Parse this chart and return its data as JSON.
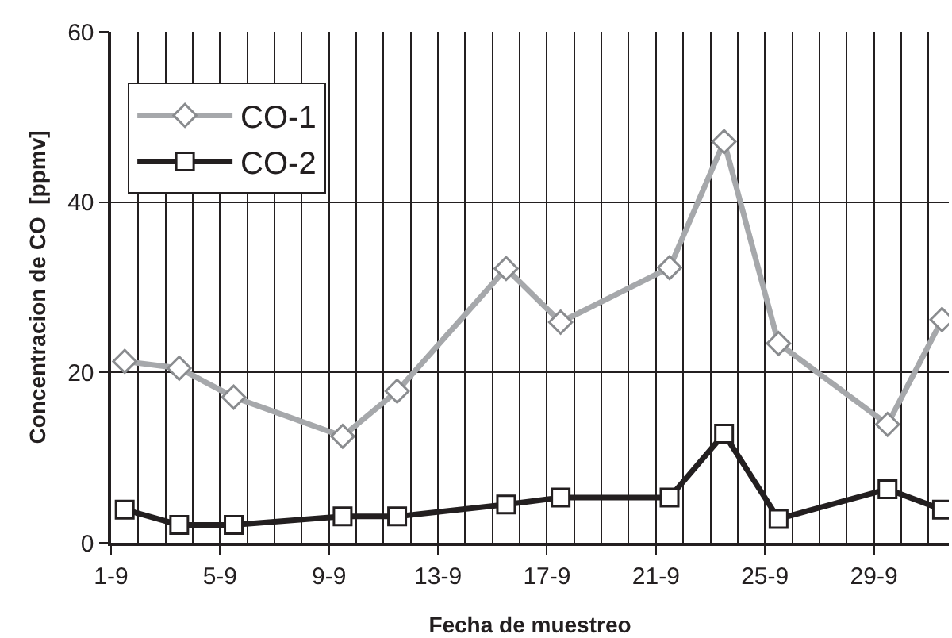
{
  "chart_data": {
    "type": "line",
    "xlabel": "Fecha de muestreo",
    "ylabel": "Concentracion de CO  [ppmv]",
    "x": [
      "--09-01T12:00",
      "--09-03T12:00",
      "--09-05T12:00",
      "--09-09T12:00",
      "--09-11T12:00",
      "--09-15T12:00",
      "--09-17T12:00",
      "--09-21T12:00",
      "--09-23T12:00",
      "--09-25T12:00",
      "--09-29T12:00",
      "--10-01T12:00"
    ],
    "series": [
      {
        "name": "CO-1",
        "color": "#a6a8ab",
        "marker": "diamond",
        "values": [
          21.3,
          20.5,
          17.1,
          12.5,
          17.8,
          32.2,
          25.9,
          32.3,
          47.1,
          23.4,
          13.9,
          26.2
        ]
      },
      {
        "name": "CO-2",
        "color": "#231f20",
        "marker": "square",
        "values": [
          3.9,
          2.1,
          2.1,
          3.1,
          3.1,
          4.5,
          5.3,
          5.3,
          12.8,
          2.8,
          6.3,
          3.9
        ]
      }
    ],
    "xlim": [
      "--09-01",
      "--10-01T18:00"
    ],
    "xticks": [
      {
        "value": "--09-01",
        "label": "1-9"
      },
      {
        "value": "--09-05",
        "label": "5-9"
      },
      {
        "value": "--09-09",
        "label": "9-9"
      },
      {
        "value": "--09-13",
        "label": "13-9"
      },
      {
        "value": "--09-17",
        "label": "17-9"
      },
      {
        "value": "--09-21",
        "label": "21-9"
      },
      {
        "value": "--09-25",
        "label": "25-9"
      },
      {
        "value": "--09-29",
        "label": "29-9"
      }
    ],
    "ylim": [
      0,
      60
    ],
    "yticks": [
      0,
      20,
      40,
      60
    ],
    "grid": true,
    "legend": "top left",
    "line_style": "solid"
  }
}
